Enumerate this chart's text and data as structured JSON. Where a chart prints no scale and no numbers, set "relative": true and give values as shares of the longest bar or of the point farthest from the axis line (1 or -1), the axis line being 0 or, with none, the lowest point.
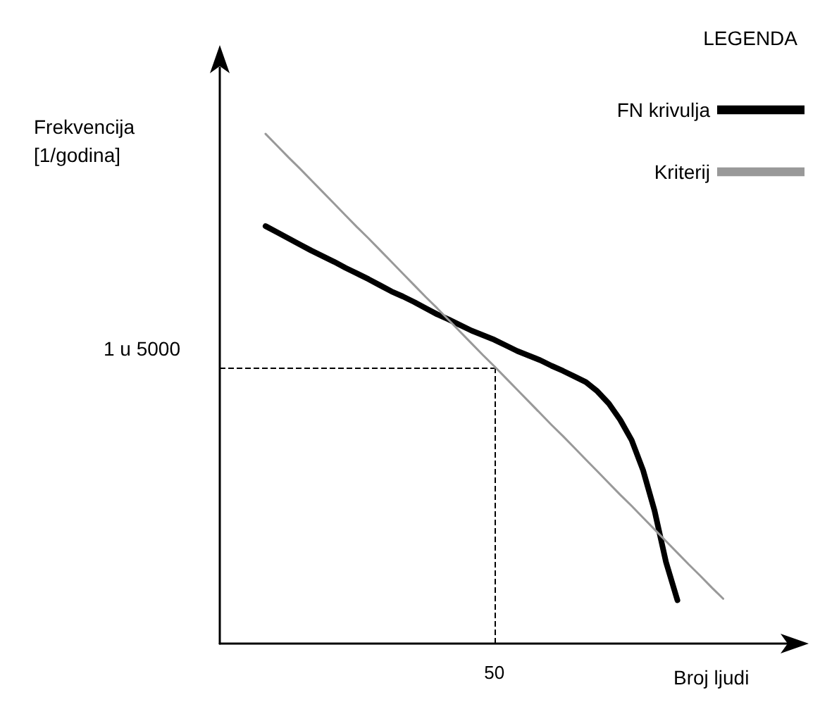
{
  "chart_data": {
    "type": "line",
    "relative": true,
    "xlabel": "Broj ljudi",
    "ylabel": "Frekvencija\n[1/godina]",
    "legend_title": "LEGENDA",
    "legend": "top right",
    "grid": false,
    "categories": [
      null,
      null,
      null,
      null,
      null,
      null,
      null,
      null,
      null,
      null,
      null,
      null,
      null,
      null,
      null,
      null,
      null,
      null,
      null,
      null,
      null,
      null,
      null,
      null,
      null,
      null,
      null,
      null,
      null,
      null,
      null,
      null,
      null,
      null,
      null,
      null,
      null,
      null,
      null,
      null,
      null,
      null,
      null,
      null,
      null,
      null,
      null,
      null,
      null,
      null,
      null
    ],
    "series": [
      {
        "name": "FN krivulja",
        "color": "#000000",
        "values": [
          null,
          null,
          null,
          null,
          0.819,
          0.807,
          0.795,
          0.783,
          0.771,
          0.76,
          0.749,
          0.737,
          0.726,
          0.715,
          0.703,
          0.691,
          0.681,
          0.67,
          0.658,
          0.646,
          0.636,
          0.625,
          0.614,
          0.605,
          0.596,
          0.585,
          0.574,
          0.565,
          0.556,
          0.545,
          0.535,
          0.524,
          0.513,
          0.495,
          0.471,
          0.439,
          0.399,
          0.34,
          0.261,
          0.16,
          0.085,
          null,
          null,
          null,
          null,
          null,
          null,
          null,
          null,
          null,
          null
        ]
      },
      {
        "name": "Kriterij",
        "color": "#999999",
        "values": [
          null,
          null,
          null,
          null,
          1.0,
          0.977,
          0.954,
          0.932,
          0.909,
          0.886,
          0.863,
          0.84,
          0.817,
          0.795,
          0.772,
          0.749,
          0.726,
          0.703,
          0.68,
          0.658,
          0.635,
          0.612,
          0.589,
          0.566,
          0.544,
          0.521,
          0.498,
          0.475,
          0.452,
          0.429,
          0.407,
          0.384,
          0.361,
          0.338,
          0.315,
          0.292,
          0.27,
          0.247,
          0.224,
          0.201,
          0.178,
          0.155,
          0.133,
          0.11,
          0.088,
          null,
          null,
          null,
          null,
          null,
          null
        ]
      }
    ],
    "ref_lines": [
      {
        "axis": "y",
        "value": 0.54,
        "label": "1 u 5000",
        "color": "#000000",
        "line_style": "dashed"
      }
    ],
    "annotations": [
      "50"
    ]
  }
}
